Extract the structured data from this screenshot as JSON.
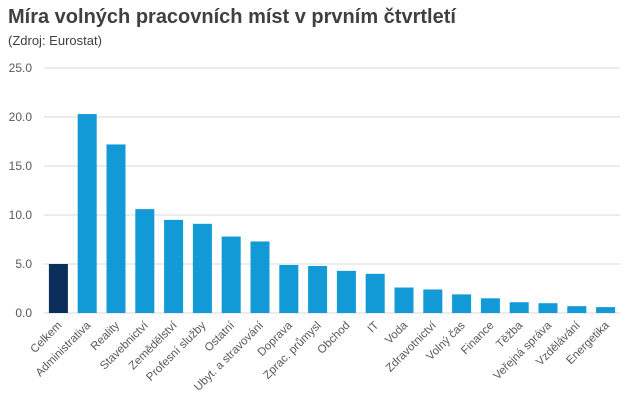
{
  "chart_data": {
    "type": "bar",
    "title": "Míra volných pracovních míst v prvním čtvrtletí",
    "subtitle": "(Zdroj: Eurostat)",
    "xlabel": "",
    "ylabel": "",
    "ylim": [
      0,
      25
    ],
    "yticks": [
      "0.0",
      "5.0",
      "10.0",
      "15.0",
      "20.0",
      "25.0"
    ],
    "grid": true,
    "legend": "none",
    "categories": [
      "Celkem",
      "Administrativa",
      "Reality",
      "Stavebnictví",
      "Zemědělství",
      "Profesní služby",
      "Ostatní",
      "Ubyt. a stravování",
      "Doprava",
      "Zprac. průmysl",
      "Obchod",
      "IT",
      "Voda",
      "Zdravotnictví",
      "Volný čas",
      "Finance",
      "Těžba",
      "Veřejná správa",
      "Vzdělávání",
      "Energetika"
    ],
    "values": [
      5.0,
      20.3,
      17.2,
      10.6,
      9.5,
      9.1,
      7.8,
      7.3,
      4.9,
      4.8,
      4.3,
      4.0,
      2.6,
      2.4,
      1.9,
      1.5,
      1.1,
      1.0,
      0.7,
      0.6
    ],
    "colors": {
      "highlight": "#0b2f5a",
      "bar": "#129ad6",
      "grid": "#d9d9d9",
      "text": "#595959"
    }
  }
}
